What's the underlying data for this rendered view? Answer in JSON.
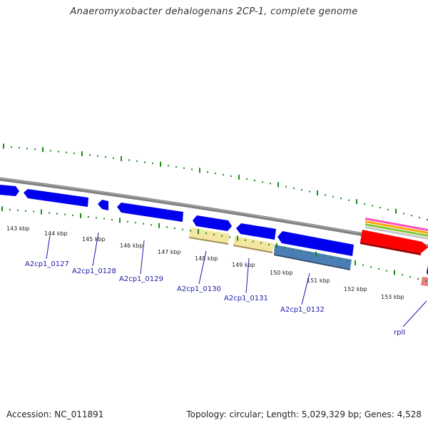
{
  "title": "Anaeromyxobacter dehalogenans 2CP-1, complete genome",
  "footer": {
    "accession": "Accession: NC_011891",
    "summary": "Topology: circular; Length: 5,029,329 bp; Genes: 4,528"
  },
  "ticks": [
    "143 kbp",
    "144 kbp",
    "145 kbp",
    "146 kbp",
    "147 kbp",
    "148 kbp",
    "149 kbp",
    "150 kbp",
    "151 kbp",
    "152 kbp",
    "153 kbp"
  ],
  "genes": [
    {
      "label": "A2cp1_0127"
    },
    {
      "label": "A2cp1_0128"
    },
    {
      "label": "A2cp1_0129"
    },
    {
      "label": "A2cp1_0130"
    },
    {
      "label": "A2cp1_0131"
    },
    {
      "label": "A2cp1_0132"
    },
    {
      "label": "rplI"
    }
  ],
  "colors": {
    "backbone": "#808080",
    "cds_blue": "#0000ee",
    "yellow": "#f2e6a0",
    "steel": "#4a7fb5",
    "red": "#ff0000",
    "gc_green": "#1a8c1a",
    "label_blue": "#1a1aa8"
  }
}
